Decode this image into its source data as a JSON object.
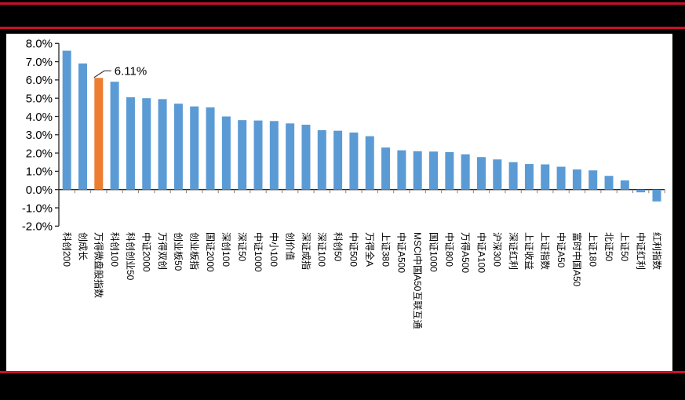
{
  "page": {
    "background_color": "#000000",
    "rule_color": "#C8102E",
    "panel_color": "#FFFFFF"
  },
  "chart_data": {
    "type": "bar",
    "title": "",
    "xlabel": "",
    "ylabel": "",
    "grid": false,
    "legend_position": "none",
    "ylim": [
      -2,
      8
    ],
    "ytick_step": 1,
    "ytick_labels": [
      "8.0%",
      "7.0%",
      "6.0%",
      "5.0%",
      "4.0%",
      "3.0%",
      "2.0%",
      "1.0%",
      "0.0%",
      "-1.0%",
      "-2.0%"
    ],
    "bar_color": "#5B9BD5",
    "highlight_color": "#ED7D31",
    "highlight_index": 2,
    "annotation": {
      "text": "6.11%",
      "target_index": 2
    },
    "categories": [
      "科创200",
      "创成长",
      "万得微盘股指数",
      "科创100",
      "科创创业50",
      "中证2000",
      "万得双创",
      "创业板50",
      "创业板指",
      "国证2000",
      "深创100",
      "深证50",
      "中证1000",
      "中小100",
      "创价值",
      "深证成指",
      "深证100",
      "科创50",
      "中证500",
      "万得全A",
      "上证380",
      "中证A500",
      "MSCI中国A50互联互通",
      "国证1000",
      "中证800",
      "万得A500",
      "中证A100",
      "沪深300",
      "深证红利",
      "上证收益",
      "上证指数",
      "中证A50",
      "富时中国A50",
      "上证180",
      "北证50",
      "上证50",
      "中证红利",
      "红利指数"
    ],
    "values": [
      7.6,
      6.9,
      6.11,
      5.9,
      5.05,
      5.0,
      4.95,
      4.7,
      4.55,
      4.5,
      4.0,
      3.8,
      3.78,
      3.75,
      3.62,
      3.55,
      3.25,
      3.22,
      3.12,
      2.92,
      2.3,
      2.15,
      2.1,
      2.08,
      2.05,
      1.93,
      1.78,
      1.65,
      1.5,
      1.4,
      1.38,
      1.25,
      1.1,
      1.05,
      0.75,
      0.5,
      -0.15,
      -0.65
    ]
  }
}
